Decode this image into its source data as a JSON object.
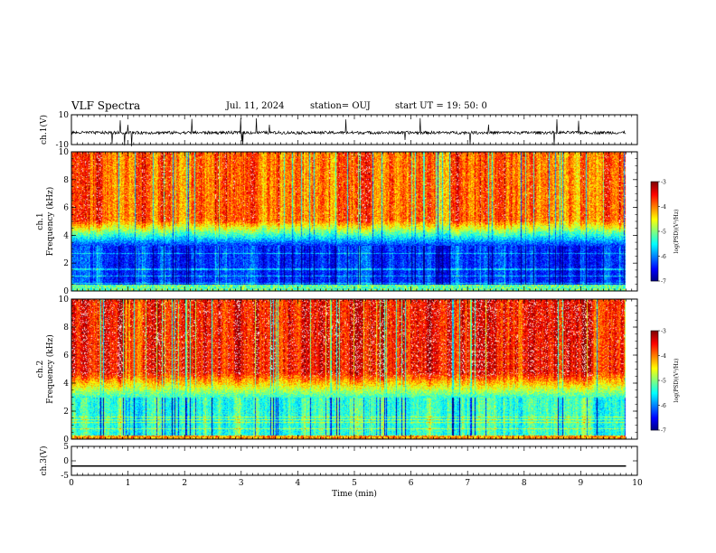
{
  "header": {
    "title": "VLF Spectra",
    "date": "Jul. 11, 2024",
    "station": "station= OUJ",
    "start": "start UT =  19: 50: 0"
  },
  "chart_data": [
    {
      "type": "line",
      "panel": "ch1-waveform",
      "ylabel": "ch.1(V)",
      "ylim": [
        -10,
        10
      ],
      "yticks": [
        "10",
        "-10"
      ],
      "xlim": [
        0,
        10
      ],
      "baseline": -2,
      "noise_amplitude": 1
    },
    {
      "type": "heatmap",
      "panel": "ch1-spectrogram",
      "ylabel": "ch.1\nFrequency (kHz)",
      "xlim": [
        0,
        10
      ],
      "ylim": [
        0,
        10
      ],
      "yticks": [
        "0",
        "2",
        "4",
        "6",
        "8",
        "10"
      ],
      "colorbar": {
        "label": "log(PSD)(V²/Hz)",
        "range": [
          -7,
          -3
        ],
        "ticks": [
          "-3",
          "-4",
          "-5",
          "-6",
          "-7"
        ]
      },
      "data_end_min": 9.8,
      "upper_level": -3.9,
      "low_band_khz": [
        0.5,
        3.3
      ],
      "low_band_level": -6.3
    },
    {
      "type": "heatmap",
      "panel": "ch2-spectrogram",
      "ylabel": "ch.2\nFrequency (kHz)",
      "xlim": [
        0,
        10
      ],
      "ylim": [
        0,
        10
      ],
      "yticks": [
        "0",
        "2",
        "4",
        "6",
        "8",
        "10"
      ],
      "colorbar": {
        "label": "log(PSD)(V²/Hz)",
        "range": [
          -7,
          -3
        ],
        "ticks": [
          "-3",
          "-4",
          "-5",
          "-6",
          "-7"
        ]
      },
      "data_end_min": 9.8,
      "upper_level": -3.5,
      "low_band_khz": [
        0.3,
        3.0
      ],
      "low_band_level": -5.3
    },
    {
      "type": "line",
      "panel": "ch3-waveform",
      "ylabel": "ch.3(V)",
      "ylim": [
        -5,
        5
      ],
      "yticks": [
        "5",
        "0",
        "-5"
      ],
      "xlim": [
        0,
        10
      ],
      "constant_value": -1.8
    }
  ],
  "xaxis": {
    "label": "Time (min)",
    "ticks": [
      "0",
      "1",
      "2",
      "3",
      "4",
      "5",
      "6",
      "7",
      "8",
      "9",
      "10"
    ]
  }
}
